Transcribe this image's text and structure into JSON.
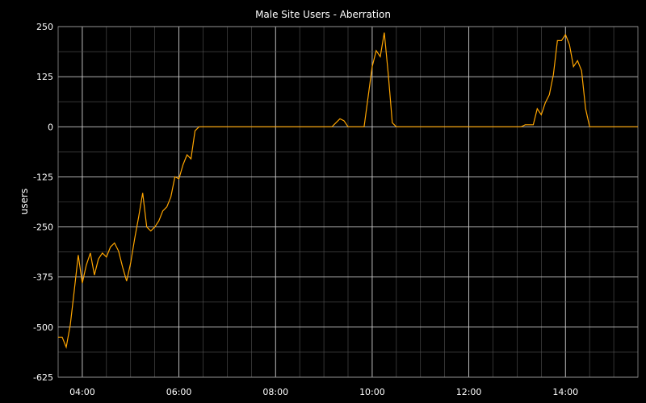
{
  "chart_data": {
    "type": "line",
    "title": "Male Site Users - Aberration",
    "xlabel": "",
    "ylabel": "users",
    "ylim": [
      -625,
      250
    ],
    "y_ticks": [
      250,
      125,
      0,
      -125,
      -250,
      -375,
      -500,
      -625
    ],
    "y_tick_labels": [
      "250",
      "125",
      "0",
      "-125",
      "-250",
      "-375",
      "-500",
      "-625"
    ],
    "x_range": [
      "03:30",
      "15:30"
    ],
    "x_ticks": [
      "04:00",
      "06:00",
      "08:00",
      "10:00",
      "12:00",
      "14:00"
    ],
    "grid": true,
    "line_color": "#ffa500",
    "background": "#000000",
    "series": [
      {
        "x": [
          "03:30",
          "03:35",
          "03:40",
          "03:45",
          "03:50",
          "03:55",
          "04:00",
          "04:05",
          "04:10",
          "04:15",
          "04:20",
          "04:25",
          "04:30",
          "04:35",
          "04:40",
          "04:45",
          "04:50",
          "04:55",
          "05:00",
          "05:05",
          "05:10",
          "05:15",
          "05:20",
          "05:25",
          "05:30",
          "05:35",
          "05:40",
          "05:45",
          "05:50",
          "05:55",
          "06:00",
          "06:05",
          "06:10",
          "06:15",
          "06:20",
          "06:25",
          "06:30",
          "06:35",
          "06:40",
          "09:10",
          "09:15",
          "09:20",
          "09:25",
          "09:30",
          "09:35",
          "09:40",
          "09:45",
          "09:50",
          "09:55",
          "10:00",
          "10:05",
          "10:10",
          "10:15",
          "10:20",
          "10:25",
          "10:30",
          "10:35",
          "10:40",
          "13:00",
          "13:05",
          "13:10",
          "13:15",
          "13:20",
          "13:25",
          "13:30",
          "13:35",
          "13:40",
          "13:45",
          "13:50",
          "13:55",
          "14:00",
          "14:05",
          "14:10",
          "14:15",
          "14:20",
          "14:25",
          "14:30",
          "14:35",
          "15:30"
        ],
        "values": [
          -525,
          -525,
          -550,
          -495,
          -410,
          -320,
          -390,
          -345,
          -315,
          -370,
          -330,
          -315,
          -325,
          -300,
          -290,
          -310,
          -350,
          -385,
          -340,
          -280,
          -225,
          -165,
          -250,
          -260,
          -250,
          -235,
          -210,
          -200,
          -175,
          -125,
          -130,
          -95,
          -70,
          -80,
          -10,
          0,
          0,
          0,
          0,
          0,
          10,
          20,
          15,
          0,
          0,
          0,
          0,
          0,
          75,
          150,
          190,
          175,
          235,
          130,
          10,
          0,
          0,
          0,
          0,
          0,
          5,
          5,
          5,
          45,
          30,
          60,
          80,
          130,
          215,
          215,
          230,
          205,
          150,
          165,
          140,
          45,
          0,
          0,
          0
        ]
      }
    ]
  }
}
